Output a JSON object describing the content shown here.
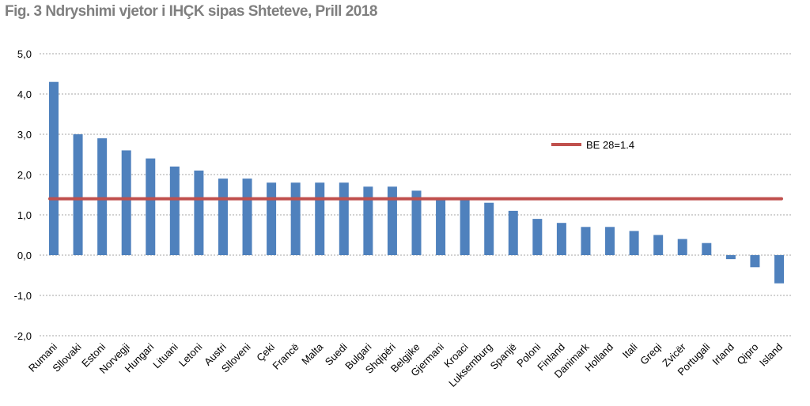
{
  "chart_data": {
    "type": "bar",
    "title": "Fig. 3 Ndryshimi vjetor i IHÇK sipas Shteteve, Prill 2018",
    "xlabel": "",
    "ylabel": "",
    "ylim": [
      -2.0,
      5.0
    ],
    "yticks": [
      "5,0",
      "4,0",
      "3,0",
      "2,0",
      "1,0",
      "0,0",
      "-1,0",
      "-2,0"
    ],
    "grid": true,
    "legend_position": "top-right",
    "categories": [
      "Rumani",
      "Sllovaki",
      "Estoni",
      "Norvegji",
      "Hungari",
      "Lituani",
      "Letoni",
      "Austri",
      "Slloveni",
      "Çeki",
      "Francë",
      "Malta",
      "Suedi",
      "Bulgari",
      "Shqipëri",
      "Belgjike",
      "Gjermani",
      "Kroaci",
      "Luksemburg",
      "Spanjë",
      "Poloni",
      "Finland",
      "Danimark",
      "Holland",
      "Itali",
      "Greqi",
      "Zvicër",
      "Portugali",
      "Irland",
      "Qipro",
      "Island"
    ],
    "values": [
      4.3,
      3.0,
      2.9,
      2.6,
      2.4,
      2.2,
      2.1,
      1.9,
      1.9,
      1.8,
      1.8,
      1.8,
      1.8,
      1.7,
      1.7,
      1.6,
      1.4,
      1.4,
      1.3,
      1.1,
      0.9,
      0.8,
      0.7,
      0.7,
      0.6,
      0.5,
      0.4,
      0.3,
      -0.1,
      -0.3,
      -0.7
    ],
    "bar_color": "#4f81bd",
    "reference_line": {
      "name": "BE 28=1.4",
      "value": 1.4,
      "color": "#c0504d"
    }
  }
}
